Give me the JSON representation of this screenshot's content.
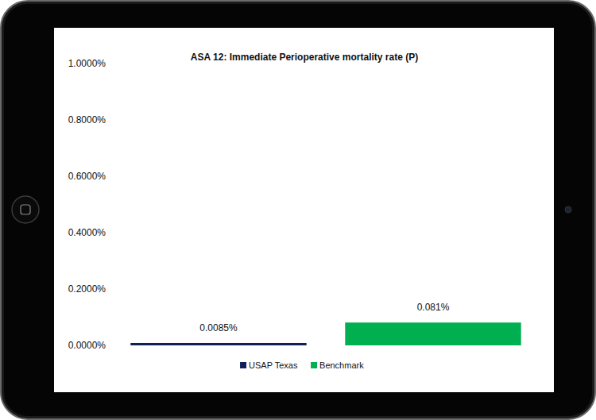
{
  "chart_data": {
    "type": "bar",
    "title": "ASA 12: Immediate Perioperative mortality rate (P)",
    "categories": [
      null
    ],
    "series": [
      {
        "name": "USAP Texas",
        "color": "#0f1f5c",
        "values": [
          0.0085
        ],
        "value_labels": [
          "0.0085%"
        ]
      },
      {
        "name": "Benchmark",
        "color": "#00b050",
        "values": [
          0.081
        ],
        "value_labels": [
          "0.081%"
        ]
      }
    ],
    "ylim": [
      0,
      1
    ],
    "yticks": [
      {
        "value": 0,
        "label": "0.0000%"
      },
      {
        "value": 0.2,
        "label": "0.2000%"
      },
      {
        "value": 0.4,
        "label": "0.4000%"
      },
      {
        "value": 0.6,
        "label": "0.6000%"
      },
      {
        "value": 0.8,
        "label": "0.8000%"
      },
      {
        "value": 1,
        "label": "1.0000%"
      }
    ],
    "grid": false,
    "legend": "bottom",
    "data_labels": true
  }
}
